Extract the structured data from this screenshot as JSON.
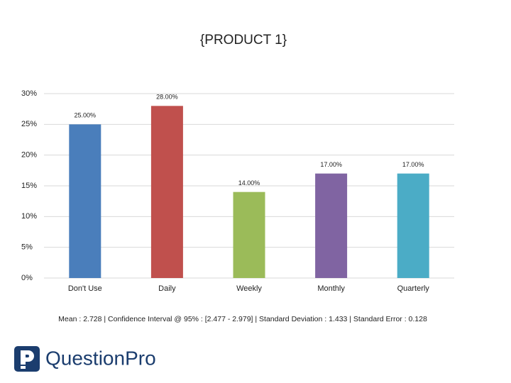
{
  "chart_data": {
    "type": "bar",
    "title": "{PRODUCT 1}",
    "categories": [
      "Don't Use",
      "Daily",
      "Weekly",
      "Monthly",
      "Quarterly"
    ],
    "values": [
      25,
      28,
      14,
      17,
      17
    ],
    "value_labels": [
      "25.00%",
      "28.00%",
      "14.00%",
      "17.00%",
      "17.00%"
    ],
    "colors": [
      "#4a7ebb",
      "#c0504d",
      "#9bbb59",
      "#8064a2",
      "#4bacc6"
    ],
    "ylim": [
      0,
      30
    ],
    "yticks": [
      {
        "value": 0,
        "label": "0%"
      },
      {
        "value": 5,
        "label": "5%"
      },
      {
        "value": 10,
        "label": "10%"
      },
      {
        "value": 15,
        "label": "15%"
      },
      {
        "value": 20,
        "label": "20%"
      },
      {
        "value": 25,
        "label": "25%"
      },
      {
        "value": 30,
        "label": "30%"
      }
    ],
    "grid": true,
    "footnote": "Mean : 2.728  |  Confidence Interval @ 95% : [2.477 - 2.979]  |  Standard Deviation : 1.433  |  Standard Error : 0.128"
  },
  "logo": "QuestionPro"
}
